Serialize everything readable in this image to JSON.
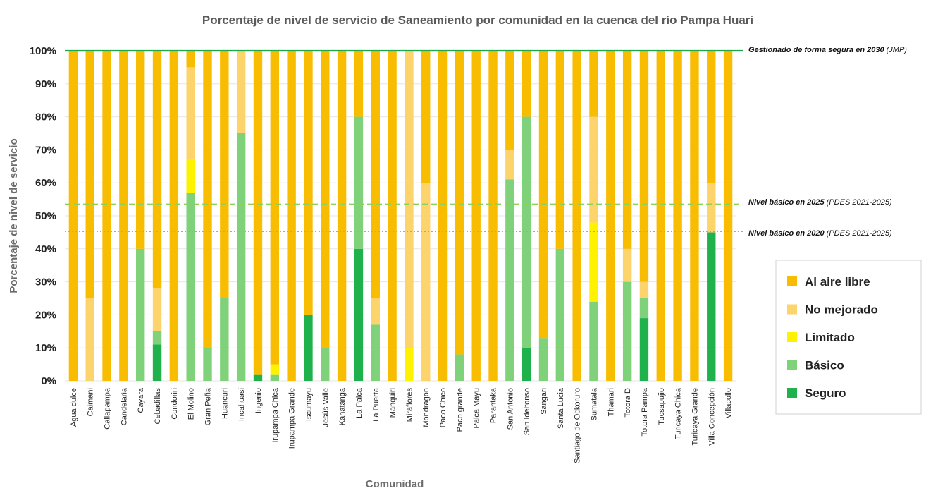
{
  "chart_data": {
    "type": "bar",
    "stacked": true,
    "title": "Porcentaje de nivel de servicio de Saneamiento por comunidad en la cuenca del río Pampa Huari",
    "xlabel": "Comunidad",
    "ylabel": "Porcentaje de nivel de servicio",
    "ylim": [
      0,
      100
    ],
    "yticks": [
      "0%",
      "10%",
      "20%",
      "30%",
      "40%",
      "50%",
      "60%",
      "70%",
      "80%",
      "90%",
      "100%"
    ],
    "grid": true,
    "legend_position": "right",
    "categories": [
      "Agua dulce",
      "Caimani",
      "Callapampa",
      "Candelaria",
      "Cayara",
      "Cebadillas",
      "Condoriri",
      "El Molino",
      "Gran Peña",
      "Huancuri",
      "Incahuasi",
      "Ingenio",
      "Irupampa Chica",
      "Irupampa Grande",
      "Iscumayu",
      "Jesús Valle",
      "Kanatanga",
      "La Palca",
      "La Puerta",
      "Manquiri",
      "Miraflores",
      "Mondragon",
      "Paco Chico",
      "Paco grande",
      "Palca Mayu",
      "Parantaka",
      "San Antonio",
      "San Idelfonso",
      "Sangari",
      "Santa Lucia",
      "Santiago de Ockoruro",
      "Sumatala",
      "Thamari",
      "Totora D",
      "Totora Pampa",
      "Tucsapujio",
      "Turicaya Chica",
      "Turicaya Grande",
      "Villa Concepción",
      "Villacollo"
    ],
    "series": [
      {
        "name": "Seguro",
        "color": "#1fb14c",
        "values": [
          0,
          0,
          0,
          0,
          0,
          11,
          0,
          0,
          0,
          0,
          0,
          2,
          0,
          0,
          20,
          0,
          0,
          40,
          0,
          0,
          0,
          0,
          0,
          0,
          0,
          0,
          0,
          10,
          0,
          0,
          0,
          0,
          0,
          0,
          19,
          0,
          0,
          0,
          45,
          0
        ]
      },
      {
        "name": "Básico",
        "color": "#7fd27a",
        "values": [
          0,
          0,
          0,
          0,
          40,
          4,
          0,
          57,
          10,
          25,
          75,
          0,
          2,
          0,
          0,
          10,
          0,
          40,
          17,
          0,
          0,
          0,
          0,
          8,
          0,
          0,
          61,
          70,
          13,
          40,
          0,
          24,
          0,
          30,
          6,
          0,
          0,
          0,
          0,
          0
        ]
      },
      {
        "name": "Limitado",
        "color": "#fff200",
        "values": [
          0,
          0,
          0,
          0,
          0,
          0,
          0,
          10,
          0,
          0,
          0,
          0,
          3,
          0,
          0,
          0,
          0,
          0,
          0,
          0,
          10,
          0,
          0,
          0,
          0,
          0,
          0,
          0,
          0,
          0,
          0,
          24,
          0,
          0,
          0,
          0,
          0,
          0,
          0,
          0
        ]
      },
      {
        "name": "No mejorado",
        "color": "#fdd36b",
        "values": [
          0,
          25,
          0,
          0,
          0,
          13,
          0,
          28,
          0,
          0,
          25,
          0,
          0,
          0,
          0,
          0,
          0,
          0,
          8,
          0,
          90,
          60,
          0,
          0,
          0,
          0,
          9,
          0,
          0,
          0,
          0,
          32,
          0,
          10,
          5,
          0,
          0,
          0,
          15,
          0
        ]
      },
      {
        "name": "Al aire libre",
        "color": "#f8bc00",
        "values": [
          100,
          75,
          100,
          100,
          60,
          72,
          100,
          5,
          90,
          75,
          0,
          98,
          95,
          100,
          80,
          90,
          100,
          20,
          75,
          100,
          0,
          40,
          100,
          92,
          100,
          100,
          30,
          20,
          87,
          60,
          100,
          20,
          100,
          60,
          70,
          100,
          100,
          100,
          40,
          100
        ]
      }
    ],
    "legend_order": [
      "Al aire libre",
      "No mejorado",
      "Limitado",
      "Básico",
      "Seguro"
    ],
    "reference_lines": [
      {
        "value": 100,
        "style": "solid",
        "color": "#1aa84a",
        "label": "Gestionado de forma segura en 2030",
        "note": "(JMP)"
      },
      {
        "value": 53.5,
        "style": "dashed",
        "color": "#8cd25a",
        "label": "Nivel básico en 2025",
        "note": "(PDES 2021-2025)"
      },
      {
        "value": 45.3,
        "style": "dotted",
        "color": "#7cd23c",
        "label": "Nivel básico en 2020",
        "note": "(PDES 2021-2025)"
      }
    ]
  }
}
